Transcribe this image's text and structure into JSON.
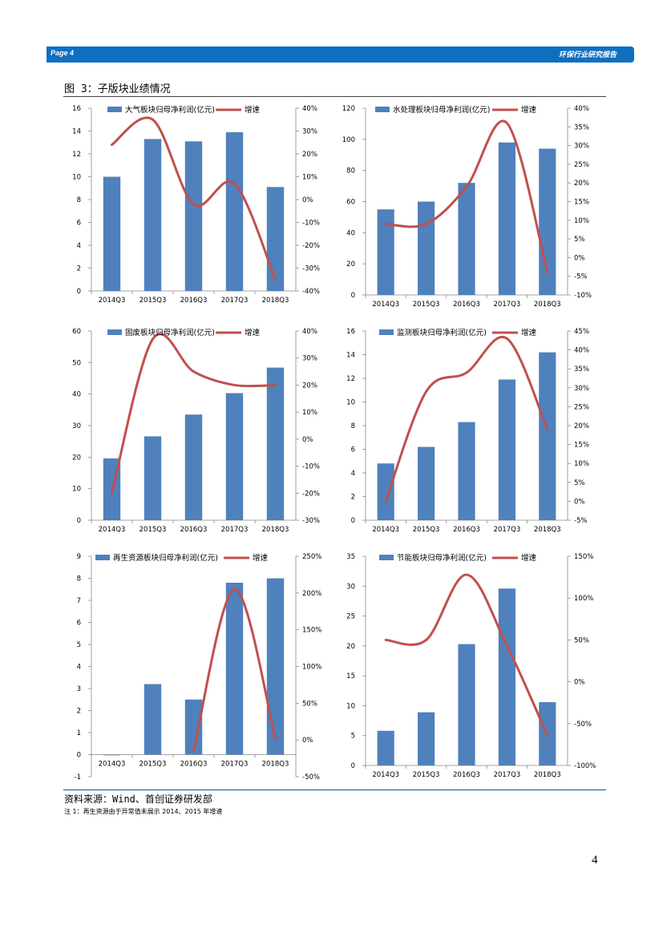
{
  "header": {
    "page_label": "Page 4",
    "report_name": "环保行业研究报告"
  },
  "figure_title": "图 3：子版块业绩情况",
  "source": "资料来源：Wind、首创证券研发部",
  "note": "注 1：再生资源由于异常值未展示 2014、2015 年增速",
  "page_number": "4",
  "colors": {
    "bar": "#4f81bd",
    "line": "#c0504d",
    "header": "#0e6fc1"
  },
  "chart_data": [
    {
      "type": "bar+line",
      "categories": [
        "2014Q3",
        "2015Q3",
        "2016Q3",
        "2017Q3",
        "2018Q3"
      ],
      "series": [
        {
          "name": "大气板块归母净利润(亿元)",
          "type": "bar",
          "axis": "left",
          "values": [
            10.0,
            13.3,
            13.1,
            13.9,
            9.1
          ]
        },
        {
          "name": "增速",
          "type": "line",
          "axis": "right",
          "values": [
            24,
            35,
            -2,
            7,
            -35
          ]
        }
      ],
      "left_axis": {
        "min": 0,
        "max": 16,
        "step": 2,
        "ticks": [
          "0",
          "2",
          "4",
          "6",
          "8",
          "10",
          "12",
          "14",
          "16"
        ]
      },
      "right_axis": {
        "min": -40,
        "max": 40,
        "step": 10,
        "ticks": [
          "-40%",
          "-30%",
          "-20%",
          "-10%",
          "0%",
          "10%",
          "20%",
          "30%",
          "40%"
        ]
      }
    },
    {
      "type": "bar+line",
      "categories": [
        "2014Q3",
        "2015Q3",
        "2016Q3",
        "2017Q3",
        "2018Q3"
      ],
      "series": [
        {
          "name": "水处理板块归母净利润(亿元)",
          "type": "bar",
          "axis": "left",
          "values": [
            55,
            60,
            72,
            98,
            94
          ]
        },
        {
          "name": "增速",
          "type": "line",
          "axis": "right",
          "values": [
            9,
            9,
            19,
            36,
            -4
          ]
        }
      ],
      "left_axis": {
        "min": 0,
        "max": 120,
        "step": 20,
        "ticks": [
          "0",
          "20",
          "40",
          "60",
          "80",
          "100",
          "120"
        ]
      },
      "right_axis": {
        "min": -10,
        "max": 40,
        "step": 5,
        "ticks": [
          "-10%",
          "-5%",
          "0%",
          "5%",
          "10%",
          "15%",
          "20%",
          "25%",
          "30%",
          "35%",
          "40%"
        ]
      }
    },
    {
      "type": "bar+line",
      "categories": [
        "2014Q3",
        "2015Q3",
        "2016Q3",
        "2017Q3",
        "2018Q3"
      ],
      "series": [
        {
          "name": "固废板块归母净利润(亿元)",
          "type": "bar",
          "axis": "left",
          "values": [
            19.6,
            26.6,
            33.5,
            40.3,
            48.4
          ]
        },
        {
          "name": "增速",
          "type": "line",
          "axis": "right",
          "values": [
            -20,
            37,
            25,
            20,
            20
          ]
        }
      ],
      "left_axis": {
        "min": 0,
        "max": 60,
        "step": 10,
        "ticks": [
          "0",
          "10",
          "20",
          "30",
          "40",
          "50",
          "60"
        ]
      },
      "right_axis": {
        "min": -30,
        "max": 40,
        "step": 10,
        "ticks": [
          "-30%",
          "-20%",
          "-10%",
          "0%",
          "10%",
          "20%",
          "30%",
          "40%"
        ]
      }
    },
    {
      "type": "bar+line",
      "categories": [
        "2014Q3",
        "2015Q3",
        "2016Q3",
        "2017Q3",
        "2018Q3"
      ],
      "series": [
        {
          "name": "监测板块归母净利润(亿元)",
          "type": "bar",
          "axis": "left",
          "values": [
            4.8,
            6.2,
            8.3,
            11.9,
            14.2
          ]
        },
        {
          "name": "增速",
          "type": "line",
          "axis": "right",
          "values": [
            0,
            29,
            34,
            43,
            19
          ]
        }
      ],
      "left_axis": {
        "min": 0,
        "max": 16,
        "step": 2,
        "ticks": [
          "0",
          "2",
          "4",
          "6",
          "8",
          "10",
          "12",
          "14",
          "16"
        ]
      },
      "right_axis": {
        "min": -5,
        "max": 45,
        "step": 5,
        "ticks": [
          "-5%",
          "0%",
          "5%",
          "10%",
          "15%",
          "20%",
          "25%",
          "30%",
          "35%",
          "40%",
          "45%"
        ]
      }
    },
    {
      "type": "bar+line",
      "categories": [
        "2014Q3",
        "2015Q3",
        "2016Q3",
        "2017Q3",
        "2018Q3"
      ],
      "series": [
        {
          "name": "再生资源板块归母净利润(亿元)",
          "type": "bar",
          "axis": "left",
          "values": [
            -0.03,
            3.2,
            2.5,
            7.8,
            8.0
          ]
        },
        {
          "name": "增速",
          "type": "line",
          "axis": "right",
          "values": [
            null,
            null,
            -15,
            205,
            2
          ]
        }
      ],
      "left_axis": {
        "min": -1,
        "max": 9,
        "step": 1,
        "ticks": [
          "-1",
          "0",
          "1",
          "2",
          "3",
          "4",
          "5",
          "6",
          "7",
          "8",
          "9"
        ]
      },
      "right_axis": {
        "min": -50,
        "max": 250,
        "step": 50,
        "ticks": [
          "-50%",
          "0%",
          "50%",
          "100%",
          "150%",
          "200%",
          "250%"
        ]
      }
    },
    {
      "type": "bar+line",
      "categories": [
        "2014Q3",
        "2015Q3",
        "2016Q3",
        "2017Q3",
        "2018Q3"
      ],
      "series": [
        {
          "name": "节能板块归母净利润(亿元)",
          "type": "bar",
          "axis": "left",
          "values": [
            5.8,
            8.9,
            20.3,
            29.6,
            10.6
          ]
        },
        {
          "name": "增速",
          "type": "line",
          "axis": "right",
          "values": [
            50,
            50,
            128,
            43,
            -64
          ]
        }
      ],
      "left_axis": {
        "min": 0,
        "max": 35,
        "step": 5,
        "ticks": [
          "0",
          "5",
          "10",
          "15",
          "20",
          "25",
          "30",
          "35"
        ]
      },
      "right_axis": {
        "min": -100,
        "max": 150,
        "step": 50,
        "ticks": [
          "-100%",
          "-50%",
          "0%",
          "50%",
          "100%",
          "150%"
        ]
      }
    }
  ]
}
